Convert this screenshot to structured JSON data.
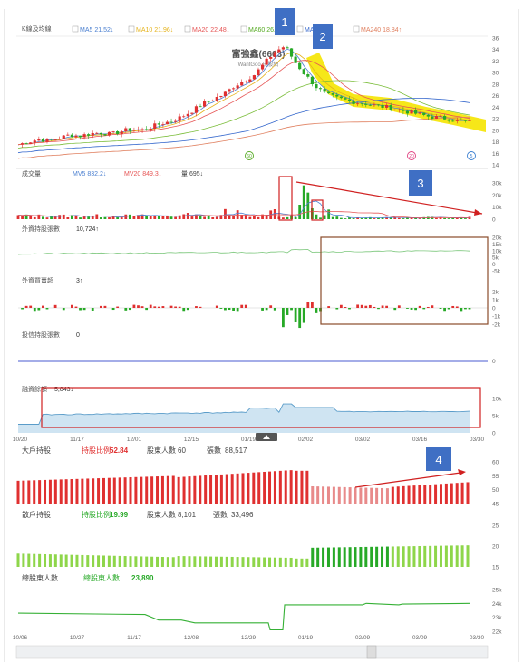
{
  "chart_data": [
    {
      "type": "candlestick",
      "panel": "price",
      "label": "K線及均線",
      "title": "富強鑫(6603)",
      "subtitle": "WantGoo 玩股網",
      "ma_legend": [
        {
          "name": "MA5 21.52↓",
          "color": "#4a7fd0"
        },
        {
          "name": "MA10 21.96↓",
          "color": "#e5b31c"
        },
        {
          "name": "MA20 22.48↓",
          "color": "#e65555"
        },
        {
          "name": "MA60 26.?",
          "color": "#55aa22"
        },
        {
          "name": "MA1..",
          "color": "#3366cc"
        },
        {
          "name": "MA240 18.84↑",
          "color": "#e08060"
        }
      ],
      "ylim": [
        14,
        36
      ],
      "yticks": [
        "36",
        "34",
        "32",
        "30",
        "28",
        "26",
        "24",
        "22",
        "20",
        "18",
        "16",
        "14"
      ],
      "events": [
        "60",
        "20",
        "5"
      ],
      "close_series": [
        17.5,
        18.0,
        18.4,
        18.2,
        18.6,
        19.2,
        19.0,
        19.4,
        19.6,
        19.3,
        19.8,
        20.2,
        20.0,
        20.6,
        21.2,
        21.6,
        22.4,
        23.4,
        24.6,
        25.4,
        26.2,
        27.6,
        28.6,
        29.6,
        31.6,
        33.6,
        34.6,
        31.8,
        29.6,
        27.6,
        26.2,
        25.6,
        25.2,
        24.8,
        24.6,
        24.2,
        24.0,
        23.6,
        23.2,
        22.8,
        22.4,
        22.2,
        22.0,
        21.6,
        21.4
      ]
    },
    {
      "type": "bar",
      "panel": "volume",
      "label": "成交量",
      "legend": [
        {
          "name": "MV5 832.2↓",
          "color": "#4a7fd0"
        },
        {
          "name": "MV20 849.3↓",
          "color": "#e65555"
        },
        {
          "name": "量 695↓",
          "color": "#444444"
        }
      ],
      "ylim": [
        0,
        30
      ],
      "yticks": [
        "30k",
        "20k",
        "10k",
        "0"
      ]
    },
    {
      "type": "line",
      "panel": "foreign_holding",
      "label": "外資持股張數",
      "value": "10,724↑",
      "ylim": [
        -5,
        20
      ],
      "yticks": [
        "20k",
        "15k",
        "10k",
        "5k",
        "0",
        "-5k"
      ]
    },
    {
      "type": "bar",
      "panel": "foreign_trade",
      "label": "外資買賣超",
      "value": "3↑",
      "ylim": [
        -2,
        2
      ],
      "yticks": [
        "2k",
        "1k",
        "0",
        "-1k",
        "-2k"
      ]
    },
    {
      "type": "line",
      "panel": "trust_holding",
      "label": "投信持股張數",
      "value": "0",
      "yticks": [
        "0"
      ]
    },
    {
      "type": "area",
      "panel": "margin",
      "label": "融資餘額",
      "value": "5,843↓",
      "ylim": [
        0,
        10
      ],
      "yticks": [
        "10k",
        "5k",
        "0"
      ],
      "x_ticks": [
        "10/20",
        "11/17",
        "12/01",
        "12/15",
        "01/19",
        "02/02",
        "03/02",
        "03/16",
        "03/30"
      ]
    },
    {
      "type": "bar",
      "panel": "big_holders",
      "label": "大戶持股",
      "ratio_label": "持股比例",
      "ratio_value": "52.84",
      "holders_label": "股東人數",
      "holders_value": "60",
      "shares_label": "張數",
      "shares_value": "88,517",
      "ylim": [
        45,
        60
      ],
      "yticks": [
        "60",
        "55",
        "50",
        "45"
      ]
    },
    {
      "type": "bar",
      "panel": "retail_holders",
      "label": "散戶持股",
      "ratio_label": "持股比例",
      "ratio_value": "19.99",
      "holders_label": "股東人數",
      "holders_value": "8,101",
      "shares_label": "張數",
      "shares_value": "33,496",
      "ylim": [
        15,
        25
      ],
      "yticks": [
        "25",
        "20",
        "15"
      ]
    },
    {
      "type": "line",
      "panel": "total_holders",
      "label": "總股東人數",
      "holders_label": "總股東人數",
      "holders_value": "23,890",
      "ylim": [
        22,
        25
      ],
      "yticks": [
        "25k",
        "24k",
        "23k",
        "22k"
      ],
      "x_ticks": [
        "10/06",
        "10/27",
        "11/17",
        "12/08",
        "12/29",
        "01/19",
        "02/09",
        "03/09",
        "03/30"
      ]
    }
  ],
  "annotations": {
    "marker_1": "1",
    "marker_2": "2",
    "marker_3": "3",
    "marker_4": "4"
  },
  "colors": {
    "up": "#e03030",
    "down": "#27a927",
    "highlight": "#f5e400",
    "marker": "#3f6fc4",
    "box_red": "#d02020",
    "box_brown": "#8a4b2a",
    "area_fill": "#cfe4f2",
    "area_line": "#5a9cc9"
  }
}
